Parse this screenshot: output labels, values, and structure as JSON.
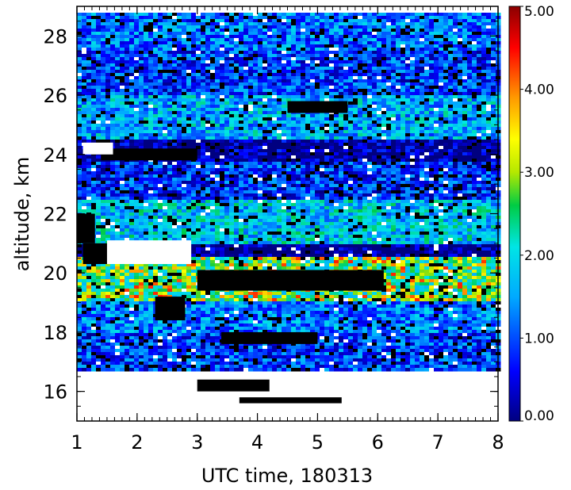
{
  "chart_data": {
    "type": "heatmap",
    "title": "",
    "xlabel": "UTC time, 180313",
    "ylabel": "altitude, km",
    "xlim": [
      1,
      8
    ],
    "ylim": [
      15,
      29
    ],
    "x_ticks": [
      1,
      2,
      3,
      4,
      5,
      6,
      7,
      8
    ],
    "y_ticks": [
      16,
      18,
      20,
      22,
      24,
      26,
      28
    ],
    "colorbar": {
      "range": [
        0,
        5
      ],
      "ticks": [
        "0.00",
        "1.00",
        "2.00",
        "3.00",
        "4.00",
        "5.00"
      ],
      "colormap": "rainbow (dark blue → blue → cyan → green → yellow → orange → red → dark red)"
    },
    "missing_color": "#ffffff",
    "low_value_color": "#000000",
    "data_bottom_km": 16.7,
    "layers": [
      {
        "alt_km": [
          27.5,
          28.8
        ],
        "typical_value": 1.2,
        "description": "light-blue layer near top"
      },
      {
        "alt_km": [
          26.0,
          27.5
        ],
        "typical_value": 0.9,
        "description": "blue with gaps"
      },
      {
        "alt_km": [
          24.5,
          26.0
        ],
        "typical_value": 1.6,
        "description": "cyan/green band with black patches"
      },
      {
        "alt_km": [
          23.8,
          24.5
        ],
        "typical_value": 0.1,
        "description": "dark/black band"
      },
      {
        "alt_km": [
          22.5,
          23.8
        ],
        "typical_value": 0.8,
        "description": "blue band"
      },
      {
        "alt_km": [
          21.0,
          22.5
        ],
        "typical_value": 1.8,
        "description": "cyan band with black streaks"
      },
      {
        "alt_km": [
          20.5,
          21.0
        ],
        "typical_value": 0.0,
        "description": "missing/white patches"
      },
      {
        "alt_km": [
          19.0,
          20.5
        ],
        "typical_value": 2.4,
        "description": "mixed black and orange/red"
      },
      {
        "alt_km": [
          18.0,
          19.0
        ],
        "typical_value": 1.3,
        "description": "blue/cyan band"
      },
      {
        "alt_km": [
          16.7,
          18.0
        ],
        "typical_value": 0.9,
        "description": "blue with black patches"
      }
    ]
  }
}
